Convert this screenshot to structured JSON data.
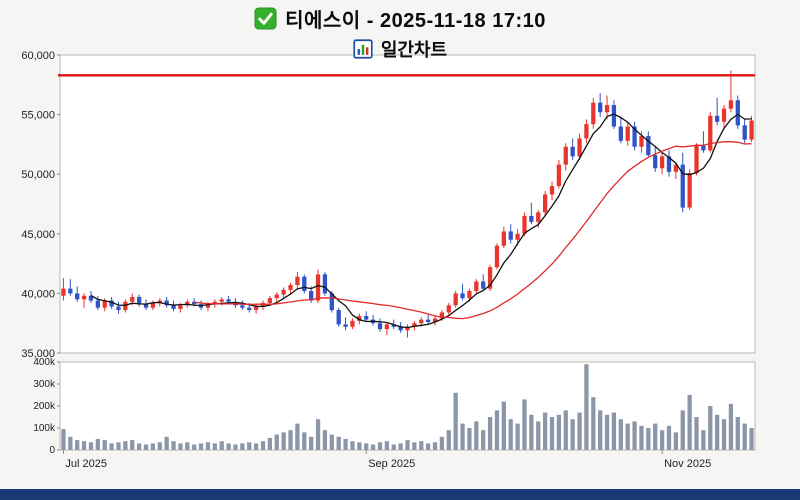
{
  "header": {
    "title": "티에스이 - 2025-11-18 17:10",
    "subtitle": "일간차트"
  },
  "chart_data": {
    "type": "candlestick",
    "title": "티에스이 - 2025-11-18 17:10",
    "subtitle": "일간차트",
    "legend_position": "none",
    "grid": false,
    "price_axis": {
      "min": 35000,
      "max": 60000,
      "ticks": [
        35000,
        40000,
        45000,
        50000,
        55000,
        60000
      ],
      "tick_labels": [
        "35,000",
        "40,000",
        "45,000",
        "50,000",
        "55,000",
        "60,000"
      ]
    },
    "volume_axis": {
      "min": 0,
      "max": 400000,
      "tick_labels": [
        "0",
        "100k",
        "200k",
        "300k",
        "400k"
      ]
    },
    "x_ticks": [
      {
        "label": "Jul 2025",
        "index": 0
      },
      {
        "label": "Sep 2025",
        "index": 44
      },
      {
        "label": "Nov 2025",
        "index": 87
      }
    ],
    "resistance_line": {
      "value": 58300,
      "color": "#dd1111"
    },
    "overlays": [
      {
        "name": "ma-short",
        "period": 5,
        "color": "#111111"
      },
      {
        "name": "ma-long",
        "period": 20,
        "color": "#e02b2b"
      }
    ],
    "colors": {
      "up": "#e8352e",
      "down": "#2e54c6",
      "volume": "#8b96a8"
    },
    "volume_unit": "thousands",
    "candles_format": [
      "open",
      "high",
      "low",
      "close",
      "volume_k"
    ],
    "candles": [
      [
        39800,
        41300,
        39400,
        40400,
        95
      ],
      [
        40400,
        41200,
        39800,
        40000,
        60
      ],
      [
        40000,
        40600,
        39300,
        39500,
        45
      ],
      [
        39500,
        40000,
        38800,
        39800,
        40
      ],
      [
        39800,
        40200,
        39200,
        39400,
        35
      ],
      [
        39400,
        39800,
        38600,
        38800,
        50
      ],
      [
        38800,
        39600,
        38500,
        39400,
        45
      ],
      [
        39400,
        39700,
        38700,
        38900,
        30
      ],
      [
        38900,
        39300,
        38300,
        38600,
        35
      ],
      [
        38600,
        39500,
        38400,
        39300,
        40
      ],
      [
        39300,
        40000,
        39000,
        39700,
        45
      ],
      [
        39700,
        39900,
        38900,
        39100,
        30
      ],
      [
        39100,
        39500,
        38600,
        38800,
        25
      ],
      [
        38800,
        39400,
        38600,
        39200,
        30
      ],
      [
        39200,
        39600,
        38900,
        39400,
        35
      ],
      [
        39400,
        39700,
        38800,
        39000,
        60
      ],
      [
        39000,
        39400,
        38500,
        38700,
        40
      ],
      [
        38700,
        39200,
        38400,
        39000,
        30
      ],
      [
        39000,
        39500,
        38800,
        39300,
        35
      ],
      [
        39300,
        39600,
        38900,
        39100,
        25
      ],
      [
        39100,
        39400,
        38600,
        38800,
        30
      ],
      [
        38800,
        39300,
        38500,
        39100,
        35
      ],
      [
        39100,
        39500,
        38800,
        39300,
        30
      ],
      [
        39300,
        39700,
        39000,
        39500,
        40
      ],
      [
        39500,
        39800,
        39100,
        39300,
        30
      ],
      [
        39300,
        39600,
        38800,
        39000,
        25
      ],
      [
        39000,
        39400,
        38600,
        38800,
        30
      ],
      [
        38800,
        39200,
        38400,
        38600,
        35
      ],
      [
        38600,
        39100,
        38300,
        38900,
        30
      ],
      [
        38900,
        39400,
        38600,
        39200,
        40
      ],
      [
        39200,
        39800,
        39000,
        39600,
        55
      ],
      [
        39600,
        40100,
        39300,
        39900,
        70
      ],
      [
        39900,
        40500,
        39600,
        40300,
        80
      ],
      [
        40300,
        40900,
        40000,
        40700,
        90
      ],
      [
        40700,
        41800,
        40400,
        41400,
        120
      ],
      [
        41400,
        41600,
        40000,
        40200,
        80
      ],
      [
        40200,
        40600,
        39200,
        39400,
        60
      ],
      [
        39400,
        42000,
        39200,
        41600,
        140
      ],
      [
        41600,
        41800,
        39800,
        40000,
        90
      ],
      [
        40000,
        40200,
        38400,
        38600,
        70
      ],
      [
        38600,
        38800,
        37200,
        37400,
        60
      ],
      [
        37400,
        38000,
        36900,
        37200,
        50
      ],
      [
        37200,
        37900,
        37000,
        37700,
        40
      ],
      [
        37700,
        38300,
        37400,
        38100,
        35
      ],
      [
        38100,
        38500,
        37600,
        37800,
        30
      ],
      [
        37800,
        38200,
        37300,
        37500,
        25
      ],
      [
        37500,
        37900,
        36800,
        37000,
        35
      ],
      [
        37000,
        37600,
        36500,
        37400,
        40
      ],
      [
        37400,
        37800,
        37000,
        37200,
        25
      ],
      [
        37200,
        37600,
        36700,
        36900,
        30
      ],
      [
        36900,
        37400,
        36300,
        37200,
        45
      ],
      [
        37200,
        37700,
        36900,
        37500,
        35
      ],
      [
        37500,
        38000,
        37200,
        37800,
        40
      ],
      [
        37800,
        38200,
        37400,
        37600,
        30
      ],
      [
        37600,
        38100,
        37300,
        37900,
        35
      ],
      [
        37900,
        38600,
        37700,
        38400,
        60
      ],
      [
        38400,
        39200,
        38200,
        39000,
        90
      ],
      [
        39000,
        40200,
        38800,
        40000,
        260
      ],
      [
        40000,
        40800,
        39400,
        39600,
        120
      ],
      [
        39600,
        40400,
        39300,
        40200,
        100
      ],
      [
        40200,
        41200,
        40000,
        41000,
        130
      ],
      [
        41000,
        41600,
        40200,
        40400,
        90
      ],
      [
        40400,
        42400,
        40200,
        42200,
        150
      ],
      [
        42200,
        44200,
        42000,
        44000,
        180
      ],
      [
        44000,
        45600,
        43800,
        45200,
        220
      ],
      [
        45200,
        45800,
        44200,
        44500,
        140
      ],
      [
        44500,
        45400,
        44000,
        45000,
        120
      ],
      [
        45000,
        46800,
        44800,
        46500,
        230
      ],
      [
        46500,
        47600,
        45800,
        46000,
        160
      ],
      [
        46000,
        47000,
        45500,
        46800,
        130
      ],
      [
        46800,
        48600,
        46500,
        48300,
        170
      ],
      [
        48300,
        49400,
        47800,
        49000,
        150
      ],
      [
        49000,
        51200,
        48800,
        50800,
        160
      ],
      [
        50800,
        52600,
        50300,
        52300,
        180
      ],
      [
        52300,
        53000,
        51200,
        51500,
        140
      ],
      [
        51500,
        53400,
        51200,
        53000,
        170
      ],
      [
        53000,
        54600,
        52600,
        54200,
        390
      ],
      [
        54200,
        56400,
        53800,
        56000,
        240
      ],
      [
        56000,
        56800,
        54800,
        55200,
        180
      ],
      [
        55200,
        56600,
        54600,
        55800,
        160
      ],
      [
        55800,
        56200,
        53800,
        54000,
        170
      ],
      [
        54000,
        54800,
        52600,
        52800,
        140
      ],
      [
        52800,
        54400,
        52400,
        54000,
        120
      ],
      [
        54000,
        54400,
        52000,
        52300,
        130
      ],
      [
        52300,
        53600,
        51800,
        53200,
        110
      ],
      [
        53200,
        53600,
        51400,
        51600,
        100
      ],
      [
        51600,
        52400,
        50200,
        50500,
        120
      ],
      [
        50500,
        51800,
        50000,
        51500,
        90
      ],
      [
        51500,
        52000,
        49800,
        50200,
        110
      ],
      [
        50200,
        51000,
        49600,
        50800,
        80
      ],
      [
        50800,
        51800,
        46800,
        47200,
        180
      ],
      [
        47200,
        50400,
        47000,
        50100,
        250
      ],
      [
        50100,
        52600,
        49900,
        52400,
        150
      ],
      [
        52400,
        53600,
        51800,
        52000,
        90
      ],
      [
        52000,
        55200,
        51800,
        54900,
        200
      ],
      [
        54900,
        56400,
        54100,
        54400,
        160
      ],
      [
        54400,
        55800,
        53900,
        55500,
        140
      ],
      [
        55500,
        58700,
        55200,
        56200,
        210
      ],
      [
        56200,
        56600,
        53800,
        54100,
        150
      ],
      [
        54100,
        54600,
        52600,
        52900,
        120
      ],
      [
        52900,
        54900,
        52700,
        54500,
        100
      ]
    ]
  }
}
